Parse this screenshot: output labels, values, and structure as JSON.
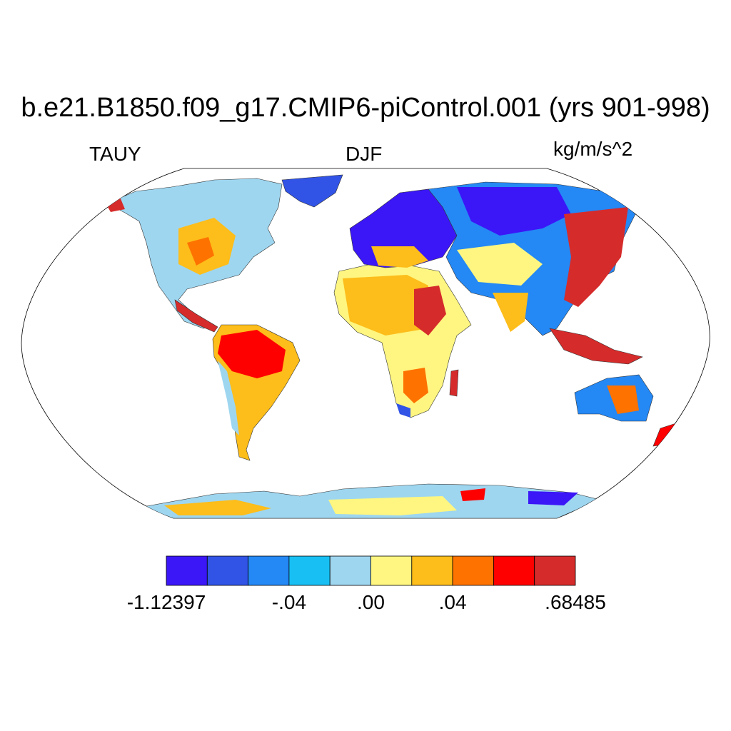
{
  "title": "b.e21.B1850.f09_g17.CMIP6-piControl.001 (yrs 901-998)",
  "left_label": "TAUY",
  "center_label": "DJF",
  "right_label": "kg/m/s^2",
  "projection": "Robinson",
  "land_only": true,
  "colorbar": {
    "colors": [
      "#3b16f7",
      "#3153e6",
      "#2488f5",
      "#17bff3",
      "#9ed6f0",
      "#fef680",
      "#fdbd1a",
      "#fe7200",
      "#fe0000",
      "#d62b2b"
    ],
    "tick_labels": [
      {
        "bin_edge": 0,
        "text": "-1.12397"
      },
      {
        "bin_edge": 3,
        "text": "-.04"
      },
      {
        "bin_edge": 5,
        "text": ".00"
      },
      {
        "bin_edge": 7,
        "text": ".04"
      },
      {
        "bin_edge": 10,
        "text": ".68485"
      }
    ]
  }
}
